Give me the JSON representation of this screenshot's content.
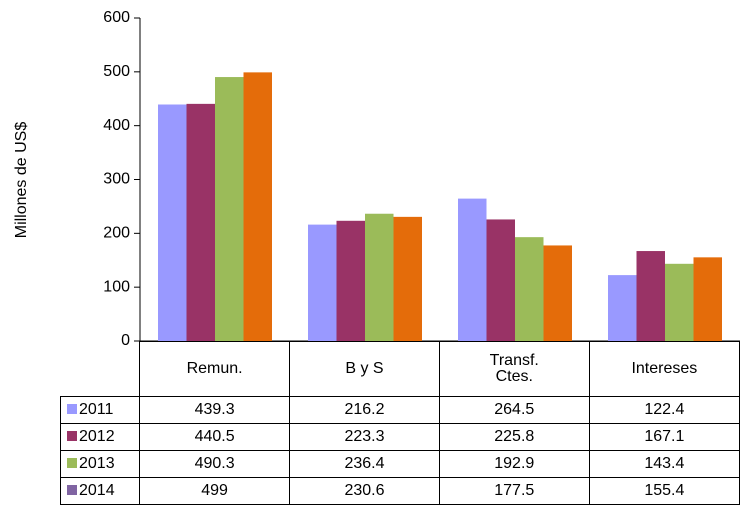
{
  "chart_data": {
    "type": "bar",
    "y_label": "Millones de US$",
    "categories": [
      "Remun.",
      "B y S",
      "Transf. Ctes.",
      "Intereses"
    ],
    "series": [
      {
        "name": "2011",
        "color": "#9999ff",
        "key_color": "#9999ff",
        "values": [
          439.3,
          216.2,
          264.5,
          122.4
        ]
      },
      {
        "name": "2012",
        "color": "#993366",
        "key_color": "#993366",
        "values": [
          440.5,
          223.3,
          225.8,
          167.1
        ]
      },
      {
        "name": "2013",
        "color": "#9bbb59",
        "key_color": "#9bbb59",
        "values": [
          490.3,
          236.4,
          192.9,
          143.4
        ]
      },
      {
        "name": "2014",
        "color": "#e46c0a",
        "key_color": "#8064a2",
        "values": [
          499,
          230.6,
          177.5,
          155.4
        ]
      }
    ],
    "ylim": [
      0,
      600
    ],
    "yticks": [
      0,
      100,
      200,
      300,
      400,
      500,
      600
    ],
    "grid": false
  }
}
